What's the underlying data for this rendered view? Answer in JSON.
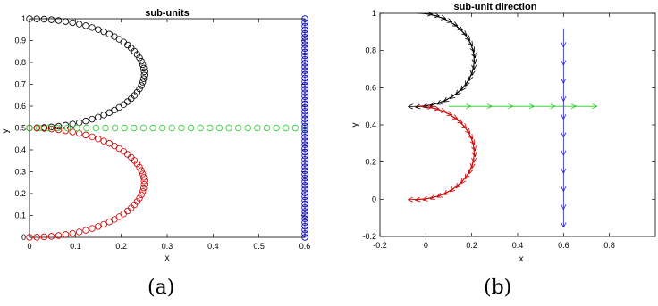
{
  "chart_data": [
    {
      "type": "scatter",
      "title": "sub-units",
      "xlabel": "x",
      "ylabel": "y",
      "xlim": [
        0,
        0.6
      ],
      "ylim": [
        0,
        1
      ],
      "xticks": [
        "0",
        "0.1",
        "0.2",
        "0.3",
        "0.4",
        "0.5",
        "0.6"
      ],
      "yticks": [
        "0",
        "0.1",
        "0.2",
        "0.3",
        "0.4",
        "0.5",
        "0.6",
        "0.7",
        "0.8",
        "0.9",
        "1"
      ],
      "marker": "open-circle",
      "grid": false,
      "series": [
        {
          "color": "#000000",
          "shape": "half-ellipse",
          "center": [
            0,
            0.75
          ],
          "rx": 0.25,
          "ry": 0.25,
          "points": 50
        },
        {
          "color": "#cc0000",
          "shape": "half-ellipse",
          "center": [
            0,
            0.25
          ],
          "rx": 0.25,
          "ry": 0.25,
          "points": 50
        },
        {
          "color": "#33cc33",
          "shape": "horizontal-line",
          "y": 0.5,
          "x_range": [
            0,
            0.6
          ],
          "points": 30
        },
        {
          "color": "#0000cc",
          "shape": "vertical-line",
          "x": 0.6,
          "y_range": [
            0,
            1
          ],
          "points": 60
        }
      ]
    },
    {
      "type": "quiver",
      "title": "sub-unit direction",
      "xlabel": "x",
      "ylabel": "y",
      "xlim": [
        -0.2,
        1
      ],
      "ylim": [
        -0.2,
        1
      ],
      "xticks": [
        "-0.2",
        "0",
        "0.2",
        "0.4",
        "0.6",
        "0.8"
      ],
      "yticks": [
        "-0.2",
        "0",
        "0.2",
        "0.4",
        "0.6",
        "0.8",
        "1"
      ],
      "grid": false,
      "series": [
        {
          "color": "#000000",
          "shape": "half-ellipse",
          "center": [
            0,
            0.75
          ],
          "rx": 0.25,
          "ry": 0.25,
          "arrows": 26
        },
        {
          "color": "#cc0000",
          "shape": "half-ellipse",
          "center": [
            0,
            0.25
          ],
          "rx": 0.25,
          "ry": 0.25,
          "arrows": 26
        },
        {
          "color": "#22cc22",
          "shape": "horizontal-line",
          "y": 0.5,
          "x_range": [
            0.1,
            0.65
          ],
          "arrows": 7,
          "direction": [
            1,
            0
          ]
        },
        {
          "color": "#2222cc",
          "shape": "vertical-line",
          "x": 0.6,
          "y_range": [
            -0.05,
            0.92
          ],
          "arrows": 11,
          "direction": [
            0,
            -1
          ]
        }
      ]
    }
  ],
  "captions": {
    "a": "(a)",
    "b": "(b)"
  }
}
